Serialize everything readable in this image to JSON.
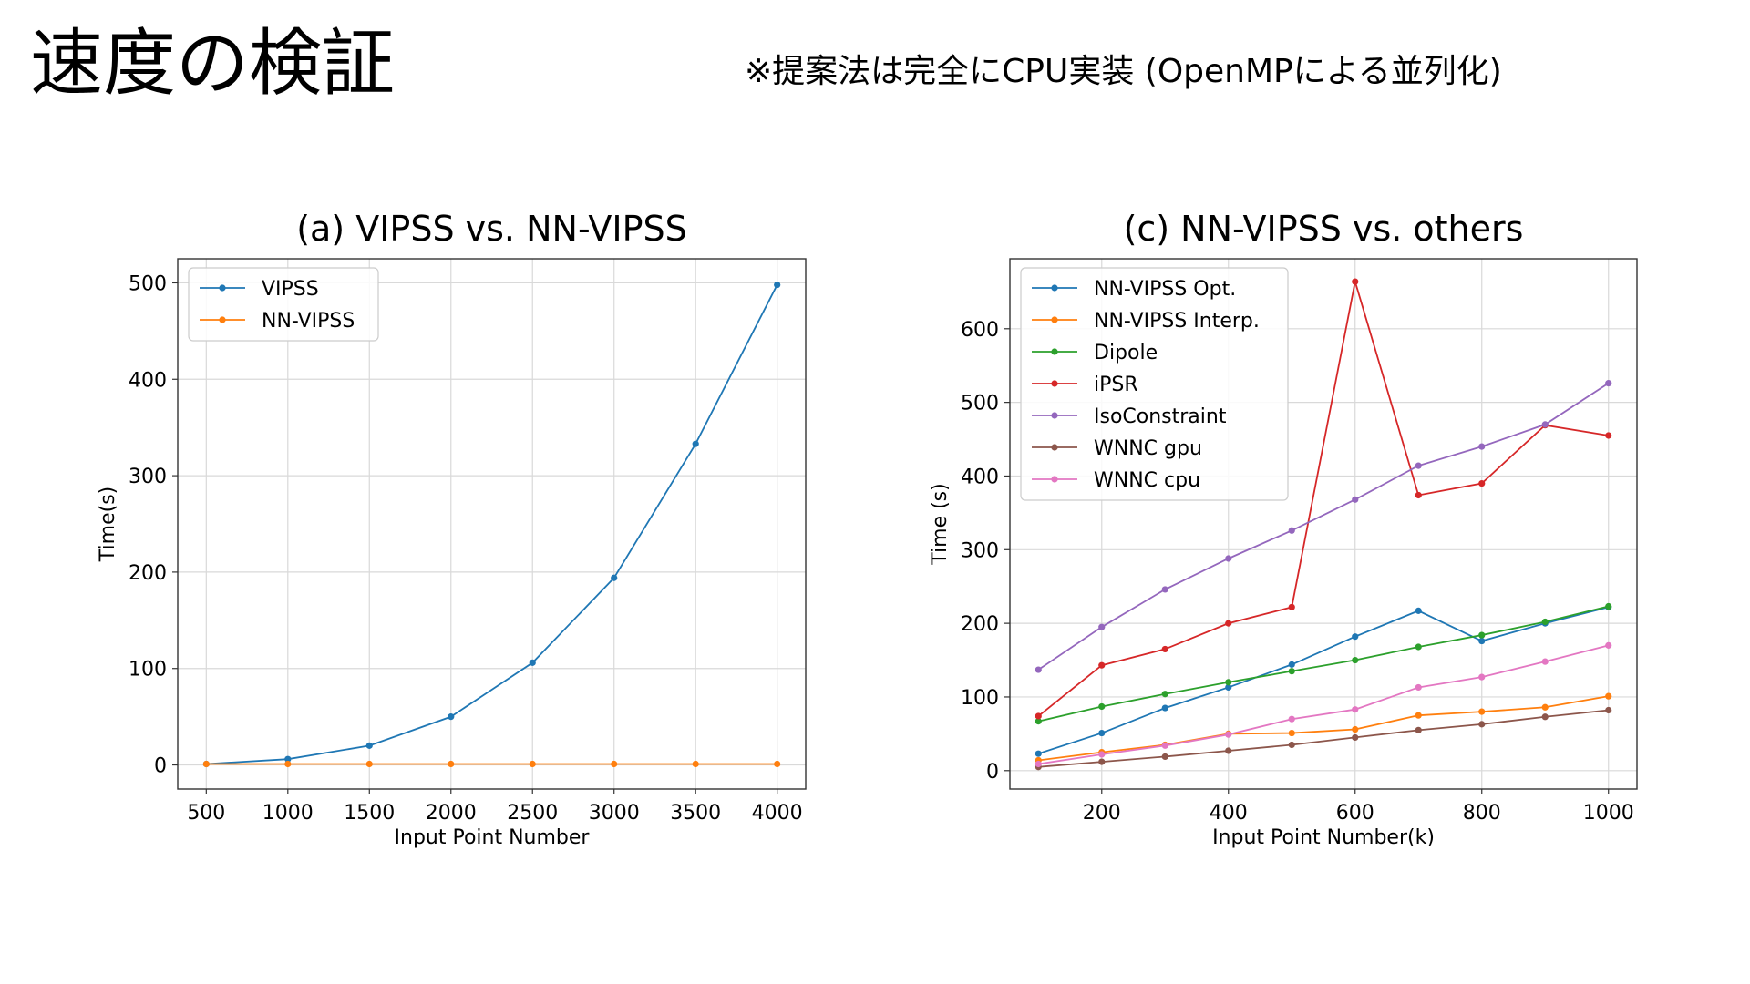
{
  "slide": {
    "title": "速度の検証",
    "note": "※提案法は完全にCPU実装 (OpenMPによる並列化)"
  },
  "colors": {
    "blue": "#1f77b4",
    "orange": "#ff7f0e",
    "green": "#2ca02c",
    "red": "#d62728",
    "purple": "#9467bd",
    "brown": "#8c564b",
    "pink": "#e377c2",
    "grid": "#d9d9d9"
  },
  "chart_data": [
    {
      "type": "line",
      "title": "(a) VIPSS vs. NN-VIPSS",
      "xlabel": "Input Point Number",
      "ylabel": "Time(s)",
      "xlim": [
        325,
        4175
      ],
      "ylim": [
        -25,
        525
      ],
      "xticks": [
        500,
        1000,
        1500,
        2000,
        2500,
        3000,
        3500,
        4000
      ],
      "yticks": [
        0,
        100,
        200,
        300,
        400,
        500
      ],
      "grid": true,
      "legend_position": "top-left",
      "x": [
        500,
        1000,
        1500,
        2000,
        2500,
        3000,
        3500,
        4000
      ],
      "series": [
        {
          "name": "VIPSS",
          "color": "#1f77b4",
          "values": [
            1,
            6,
            20,
            50,
            106,
            194,
            333,
            498
          ]
        },
        {
          "name": "NN-VIPSS",
          "color": "#ff7f0e",
          "values": [
            1,
            1,
            1,
            1,
            1,
            1,
            1,
            1
          ]
        }
      ]
    },
    {
      "type": "line",
      "title": "(c) NN-VIPSS vs. others",
      "xlabel": "Input Point Number(k)",
      "ylabel": "Time (s)",
      "xlim": [
        55,
        1045
      ],
      "ylim": [
        -25,
        695
      ],
      "xticks": [
        200,
        400,
        600,
        800,
        1000
      ],
      "yticks": [
        0,
        100,
        200,
        300,
        400,
        500,
        600
      ],
      "grid": true,
      "legend_position": "top-left",
      "x": [
        100,
        200,
        300,
        400,
        500,
        600,
        700,
        800,
        900,
        1000
      ],
      "series": [
        {
          "name": "NN-VIPSS Opt.",
          "color": "#1f77b4",
          "values": [
            23,
            51,
            85,
            113,
            144,
            182,
            217,
            176,
            200,
            222
          ]
        },
        {
          "name": "NN-VIPSS Interp.",
          "color": "#ff7f0e",
          "values": [
            14,
            25,
            35,
            50,
            51,
            56,
            75,
            80,
            86,
            101
          ]
        },
        {
          "name": "Dipole",
          "color": "#2ca02c",
          "values": [
            67,
            87,
            104,
            120,
            135,
            150,
            168,
            184,
            202,
            223
          ]
        },
        {
          "name": "iPSR",
          "color": "#d62728",
          "values": [
            74,
            143,
            165,
            200,
            222,
            664,
            374,
            390,
            469,
            455
          ]
        },
        {
          "name": "IsoConstraint",
          "color": "#9467bd",
          "values": [
            137,
            195,
            246,
            288,
            326,
            368,
            414,
            440,
            470,
            526
          ]
        },
        {
          "name": "WNNC gpu",
          "color": "#8c564b",
          "values": [
            5,
            12,
            19,
            27,
            35,
            45,
            55,
            63,
            73,
            82
          ]
        },
        {
          "name": "WNNC cpu",
          "color": "#e377c2",
          "values": [
            9,
            22,
            34,
            49,
            70,
            83,
            113,
            127,
            148,
            170
          ]
        }
      ]
    }
  ]
}
